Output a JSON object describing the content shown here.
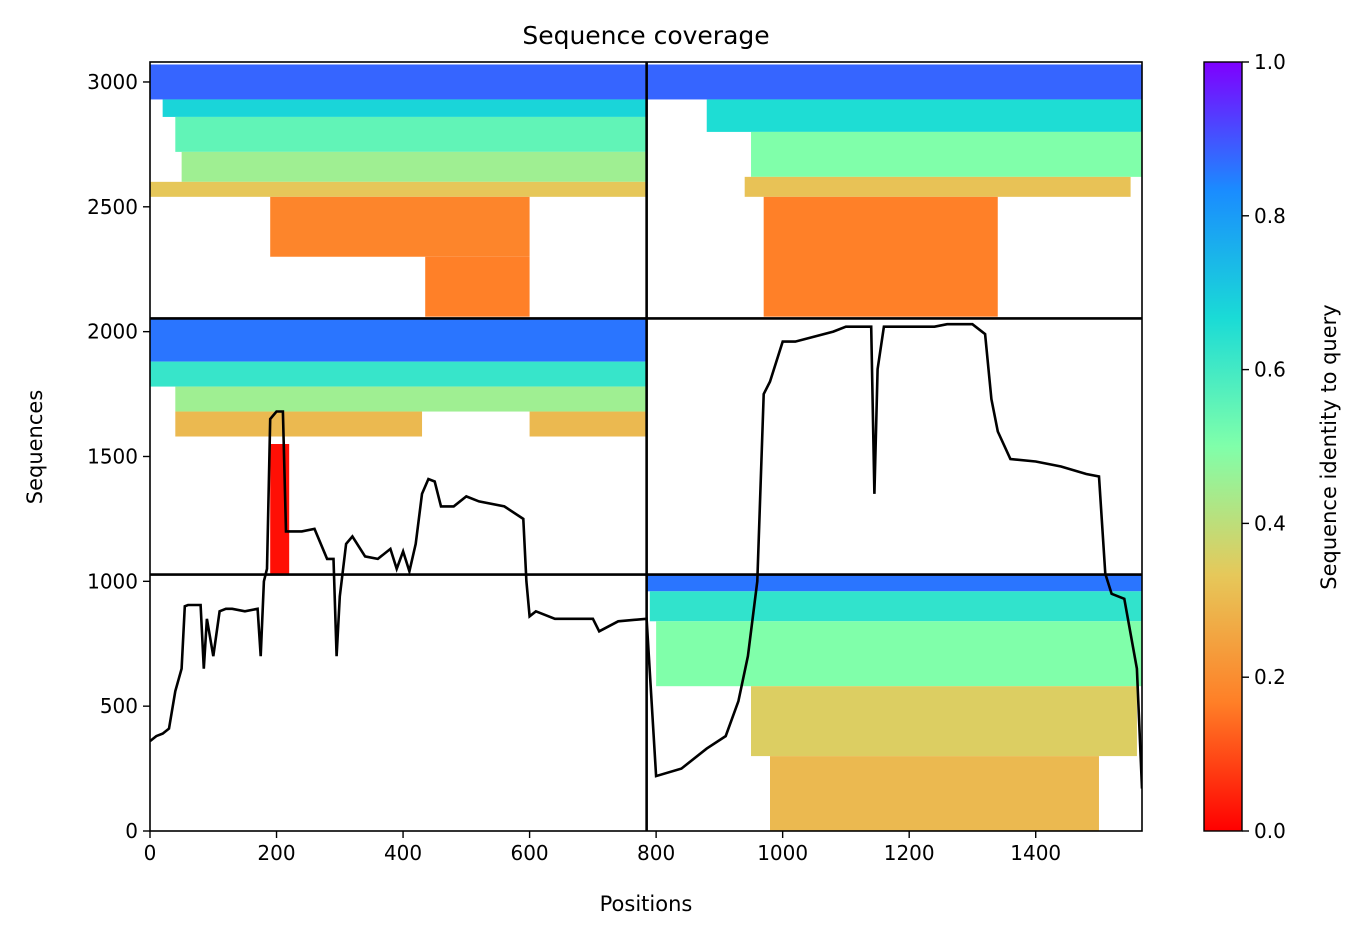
{
  "chart_data": {
    "type": "heatmap",
    "title": "Sequence coverage",
    "xlabel": "Positions",
    "ylabel": "Sequences",
    "xlim": [
      0,
      1568
    ],
    "ylim": [
      0,
      3080
    ],
    "x_ticks": [
      0,
      200,
      400,
      600,
      800,
      1000,
      1200,
      1400
    ],
    "y_ticks": [
      0,
      500,
      1000,
      1500,
      2000,
      2500,
      3000
    ],
    "grid": false,
    "colorbar": {
      "label": "Sequence identity to query",
      "colormap": "rainbow_r",
      "range": [
        0,
        1
      ],
      "ticks": [
        0.0,
        0.2,
        0.4,
        0.6,
        0.8,
        1.0
      ],
      "tick_labels": [
        "0.0",
        "0.2",
        "0.4",
        "0.6",
        "0.8",
        "1.0"
      ]
    },
    "panel_dividers": {
      "x": [
        785
      ],
      "y": [
        1027,
        2053
      ]
    },
    "coverage_blocks": [
      {
        "x0": 0,
        "x1": 785,
        "y0": 2930,
        "y1": 3070,
        "identity": 0.88
      },
      {
        "x0": 20,
        "x1": 785,
        "y0": 2860,
        "y1": 2930,
        "identity": 0.68
      },
      {
        "x0": 40,
        "x1": 785,
        "y0": 2720,
        "y1": 2860,
        "identity": 0.55
      },
      {
        "x0": 50,
        "x1": 785,
        "y0": 2600,
        "y1": 2720,
        "identity": 0.45
      },
      {
        "x0": 0,
        "x1": 785,
        "y0": 2540,
        "y1": 2600,
        "identity": 0.33
      },
      {
        "x0": 190,
        "x1": 600,
        "y0": 2300,
        "y1": 2540,
        "identity": 0.18
      },
      {
        "x0": 435,
        "x1": 600,
        "y0": 2060,
        "y1": 2300,
        "identity": 0.17
      },
      {
        "x0": 785,
        "x1": 1568,
        "y0": 2930,
        "y1": 3070,
        "identity": 0.88
      },
      {
        "x0": 880,
        "x1": 1568,
        "y0": 2800,
        "y1": 2930,
        "identity": 0.66
      },
      {
        "x0": 950,
        "x1": 1568,
        "y0": 2620,
        "y1": 2800,
        "identity": 0.5
      },
      {
        "x0": 940,
        "x1": 1550,
        "y0": 2540,
        "y1": 2620,
        "identity": 0.32
      },
      {
        "x0": 970,
        "x1": 1340,
        "y0": 2060,
        "y1": 2540,
        "identity": 0.17
      },
      {
        "x0": 0,
        "x1": 785,
        "y0": 1880,
        "y1": 2053,
        "identity": 0.86
      },
      {
        "x0": 0,
        "x1": 785,
        "y0": 1780,
        "y1": 1880,
        "identity": 0.62
      },
      {
        "x0": 40,
        "x1": 785,
        "y0": 1680,
        "y1": 1780,
        "identity": 0.45
      },
      {
        "x0": 40,
        "x1": 430,
        "y0": 1580,
        "y1": 1680,
        "identity": 0.3
      },
      {
        "x0": 600,
        "x1": 785,
        "y0": 1580,
        "y1": 1680,
        "identity": 0.3
      },
      {
        "x0": 190,
        "x1": 220,
        "y0": 1030,
        "y1": 1550,
        "identity": 0.02
      },
      {
        "x0": 785,
        "x1": 1568,
        "y0": 960,
        "y1": 1027,
        "identity": 0.86
      },
      {
        "x0": 790,
        "x1": 1568,
        "y0": 840,
        "y1": 960,
        "identity": 0.63
      },
      {
        "x0": 800,
        "x1": 1568,
        "y0": 580,
        "y1": 840,
        "identity": 0.5
      },
      {
        "x0": 950,
        "x1": 1560,
        "y0": 300,
        "y1": 580,
        "identity": 0.35
      },
      {
        "x0": 980,
        "x1": 1500,
        "y0": 0,
        "y1": 300,
        "identity": 0.3
      }
    ],
    "coverage_line": {
      "name": "",
      "x": [
        0,
        10,
        20,
        30,
        40,
        50,
        55,
        60,
        80,
        85,
        90,
        100,
        110,
        120,
        130,
        150,
        170,
        175,
        180,
        185,
        190,
        200,
        210,
        215,
        220,
        240,
        260,
        270,
        280,
        290,
        295,
        300,
        310,
        320,
        340,
        360,
        380,
        390,
        400,
        410,
        420,
        430,
        440,
        450,
        460,
        480,
        500,
        520,
        560,
        590,
        595,
        600,
        610,
        640,
        700,
        710,
        740,
        785,
        800,
        840,
        880,
        910,
        930,
        945,
        960,
        970,
        980,
        1000,
        1020,
        1050,
        1080,
        1100,
        1140,
        1145,
        1150,
        1160,
        1180,
        1200,
        1240,
        1260,
        1300,
        1320,
        1330,
        1340,
        1360,
        1400,
        1440,
        1480,
        1500,
        1510,
        1520,
        1540,
        1560,
        1568
      ],
      "y": [
        360,
        380,
        390,
        410,
        560,
        650,
        900,
        905,
        905,
        650,
        850,
        700,
        880,
        890,
        890,
        880,
        890,
        700,
        1000,
        1050,
        1650,
        1680,
        1680,
        1200,
        1200,
        1200,
        1210,
        1150,
        1090,
        1090,
        700,
        940,
        1150,
        1180,
        1100,
        1090,
        1130,
        1050,
        1120,
        1040,
        1150,
        1350,
        1410,
        1400,
        1300,
        1300,
        1340,
        1320,
        1300,
        1250,
        1000,
        860,
        880,
        850,
        850,
        800,
        840,
        850,
        220,
        250,
        330,
        380,
        520,
        700,
        1000,
        1750,
        1800,
        1960,
        1960,
        1980,
        2000,
        2020,
        2020,
        1350,
        1850,
        2020,
        2020,
        2020,
        2020,
        2030,
        2030,
        1990,
        1730,
        1600,
        1490,
        1480,
        1460,
        1430,
        1420,
        1030,
        950,
        930,
        650,
        170
      ]
    }
  }
}
